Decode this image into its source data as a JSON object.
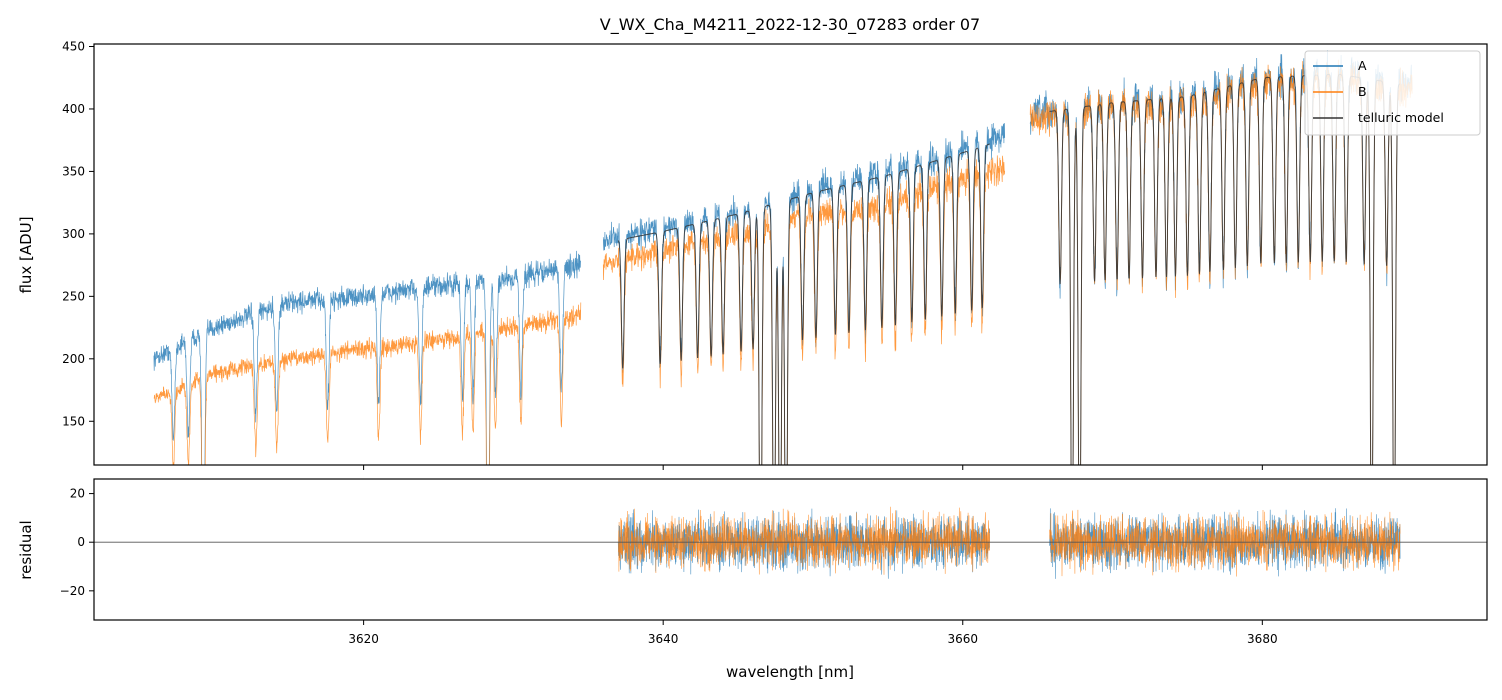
{
  "chart_data": [
    {
      "id": "top",
      "type": "line",
      "title": "V_WX_Cha_M4211_2022-12-30_07283  order 07",
      "xlabel": "",
      "ylabel": "flux [ADU]",
      "xlim": [
        3602,
        3695
      ],
      "ylim": [
        115,
        452
      ],
      "yticks": [
        150,
        200,
        250,
        300,
        350,
        400,
        450
      ],
      "ytick_labels": [
        "150",
        "200",
        "250",
        "300",
        "350",
        "400",
        "450"
      ],
      "xticks": [
        3620,
        3640,
        3660,
        3680
      ],
      "legend": {
        "position": "top-right",
        "entries": [
          {
            "label": "A",
            "color": "#1f77b4"
          },
          {
            "label": "B",
            "color": "#ff7f0e"
          },
          {
            "label": "telluric model",
            "color": "#333333"
          }
        ]
      },
      "series": [
        {
          "name": "A",
          "color": "#1f77b4",
          "segments": [
            {
              "x": [
                3606.0,
                3610.0,
                3615.0,
                3620.0,
                3625.0,
                3630.0,
                3634.5
              ],
              "y": [
                200,
                225,
                245,
                250,
                258,
                265,
                275
              ]
            },
            {
              "x": [
                3636.0,
                3640.0,
                3645.0,
                3650.0,
                3655.0,
                3660.0,
                3662.8
              ],
              "y": [
                295,
                305,
                318,
                335,
                350,
                368,
                378
              ]
            },
            {
              "x": [
                3664.5,
                3670.0,
                3675.0,
                3680.0,
                3685.0,
                3690.0
              ],
              "y": [
                395,
                405,
                410,
                425,
                430,
                420
              ]
            }
          ]
        },
        {
          "name": "B",
          "color": "#ff7f0e",
          "segments": [
            {
              "x": [
                3606.0,
                3610.0,
                3615.0,
                3620.0,
                3625.0,
                3630.0,
                3634.5
              ],
              "y": [
                168,
                188,
                200,
                208,
                215,
                225,
                235
              ]
            },
            {
              "x": [
                3636.0,
                3640.0,
                3645.0,
                3650.0,
                3655.0,
                3660.0,
                3662.8
              ],
              "y": [
                275,
                288,
                300,
                315,
                325,
                345,
                352
              ]
            },
            {
              "x": [
                3664.5,
                3670.0,
                3675.0,
                3680.0,
                3685.0,
                3690.0
              ],
              "y": [
                390,
                405,
                405,
                420,
                425,
                415
              ]
            }
          ]
        },
        {
          "name": "telluric model",
          "color": "#333333",
          "segments": [
            {
              "x": [
                3637.0,
                3640.0,
                3645.0,
                3650.0,
                3655.0,
                3660.0,
                3661.8
              ],
              "y": [
                295,
                302,
                316,
                333,
                347,
                365,
                372
              ]
            },
            {
              "x": [
                3665.8,
                3670.0,
                3675.0,
                3680.0,
                3685.0,
                3689.2
              ],
              "y": [
                398,
                405,
                410,
                425,
                428,
                420
              ]
            }
          ]
        }
      ]
    },
    {
      "id": "bottom",
      "type": "line",
      "title": "",
      "xlabel": "wavelength [nm]",
      "ylabel": "residual",
      "xlim": [
        3602,
        3695
      ],
      "ylim": [
        -32,
        26
      ],
      "yticks": [
        -20,
        0,
        20
      ],
      "ytick_labels": [
        "−20",
        "0",
        "20"
      ],
      "xticks": [
        3620,
        3640,
        3660,
        3680
      ],
      "xtick_labels": [
        "3620",
        "3640",
        "3660",
        "3680"
      ],
      "zero_line": 0,
      "series": [
        {
          "name": "A",
          "color": "#1f77b4",
          "segments": [
            {
              "x": [
                3637.0,
                3661.8
              ]
            },
            {
              "x": [
                3665.8,
                3689.2
              ]
            }
          ],
          "amplitude": 9
        },
        {
          "name": "B",
          "color": "#ff7f0e",
          "segments": [
            {
              "x": [
                3637.0,
                3661.8
              ]
            },
            {
              "x": [
                3665.8,
                3689.2
              ]
            }
          ],
          "amplitude": 9
        }
      ]
    }
  ]
}
